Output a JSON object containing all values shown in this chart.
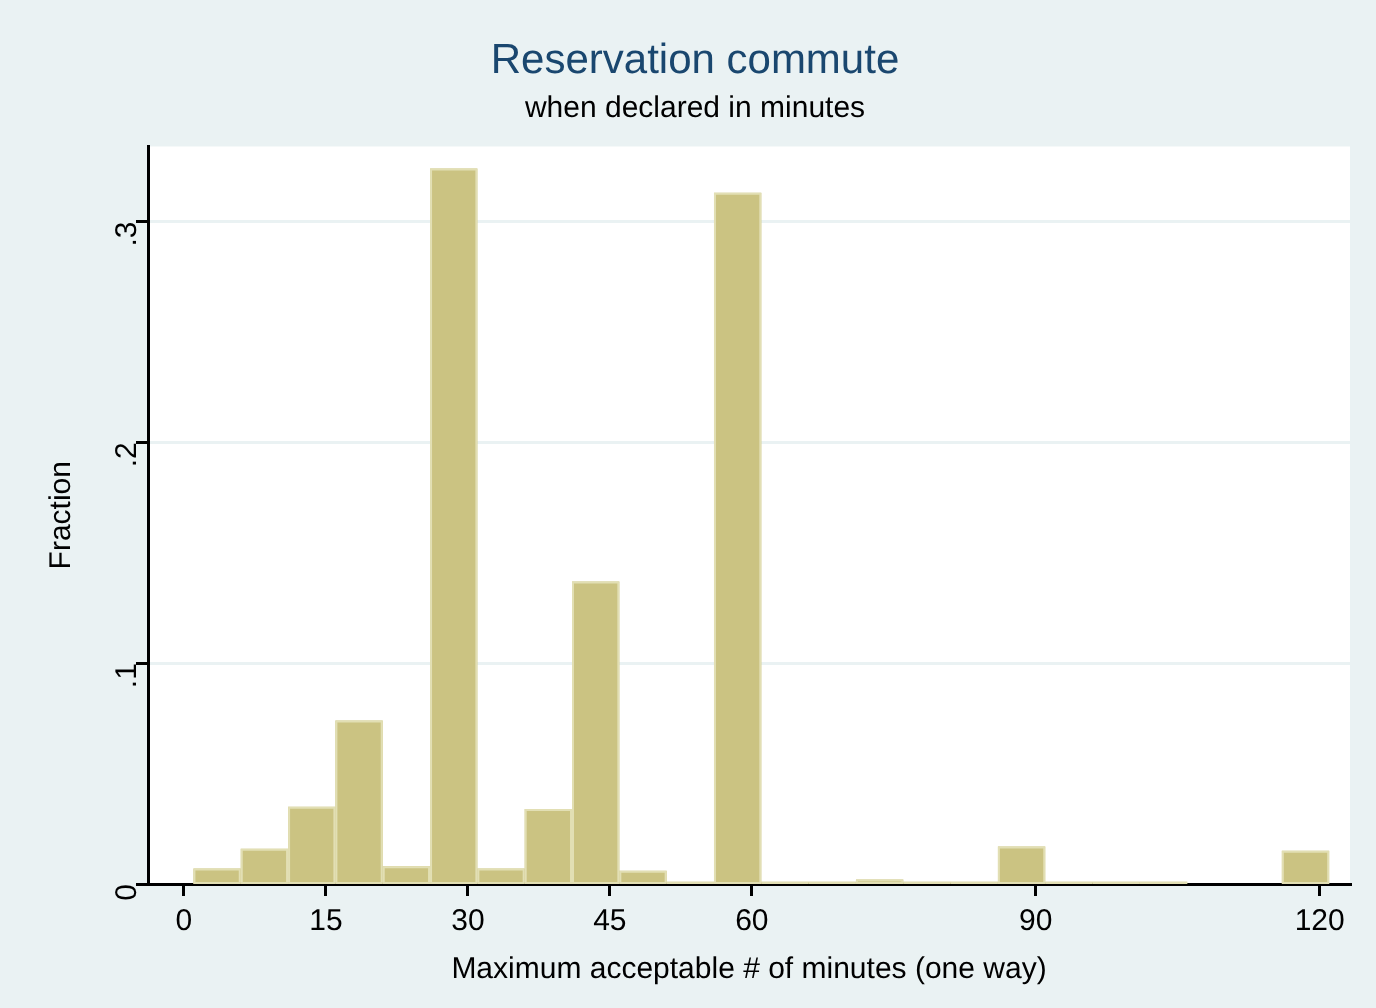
{
  "chart_data": {
    "type": "histogram",
    "title": "Reservation commute",
    "subtitle": "when declared in minutes",
    "xlabel": "Maximum acceptable # of minutes (one way)",
    "ylabel": "Fraction",
    "bins": [
      1,
      6,
      11,
      16,
      21,
      26,
      31,
      36,
      41,
      46,
      51,
      56,
      61,
      66,
      71,
      76,
      81,
      86,
      91,
      96,
      101,
      106,
      111,
      116,
      121
    ],
    "values": [
      0.007,
      0.016,
      0.035,
      0.074,
      0.008,
      0.324,
      0.007,
      0.034,
      0.137,
      0.006,
      0.001,
      0.313,
      0.001,
      0.001,
      0.002,
      0.001,
      0.001,
      0.017,
      0.001,
      0.001,
      0.001,
      0,
      0,
      0.015
    ],
    "color": "#cbc382",
    "xlim": [
      -3.8,
      123.2
    ],
    "xticks": [
      0,
      15,
      30,
      45,
      60,
      90,
      120
    ],
    "ylim": [
      0,
      0.334
    ],
    "yticks": [
      {
        "value": 0,
        "label": "0"
      },
      {
        "value": 0.1,
        "label": ".1"
      },
      {
        "value": 0.2,
        "label": ".2"
      },
      {
        "value": 0.3,
        "label": ".3"
      }
    ],
    "grid": "y"
  }
}
